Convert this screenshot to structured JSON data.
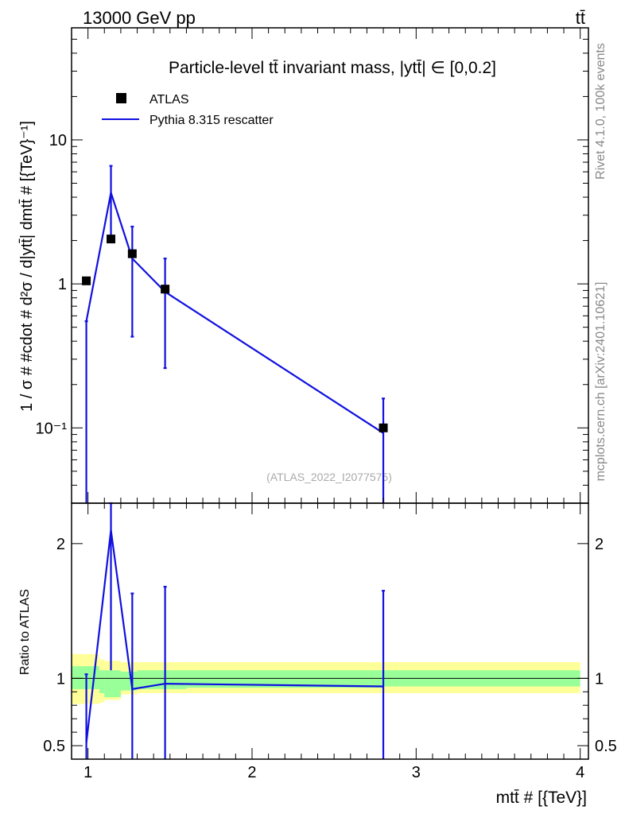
{
  "header": {
    "energy_label": "13000 GeV pp",
    "process_label": "tt̄"
  },
  "side_labels": {
    "rivet": "Rivet 4.1.0,  100k events",
    "source": "mcplots.cern.ch [arXiv:2401.10621]"
  },
  "colors": {
    "mc_line": "#1010e0",
    "band_inner": "#99ff99",
    "band_outer": "#ffff99",
    "data_marker": "#000000"
  },
  "chart_data": [
    {
      "type": "scatter",
      "panel": "main",
      "title": "Particle-level tt̄ invariant mass, |ytt̄| ∈ [0,0.2]",
      "ylabel": "1 / σ # #cdot # d²σ / d|ytt̄| dmtt̄ # [{TeV}⁻¹]",
      "yscale": "log",
      "ylim": [
        0.03,
        60
      ],
      "xlim": [
        0.9,
        4.05
      ],
      "yticks": [
        {
          "value": 10,
          "label": "10"
        },
        {
          "value": 1,
          "label": "1"
        },
        {
          "value": 0.1,
          "label": "10⁻¹"
        }
      ],
      "legend": [
        "ATLAS",
        "Pythia 8.315 rescatter"
      ],
      "watermark": "(ATLAS_2022_I2077575)",
      "data_series": {
        "name": "ATLAS",
        "x": [
          0.99,
          1.14,
          1.27,
          1.47,
          2.8
        ],
        "y": [
          1.05,
          2.05,
          1.62,
          0.92,
          0.1
        ]
      },
      "mc_series": {
        "name": "Pythia 8.315 rescatter",
        "x": [
          0.99,
          1.14,
          1.27,
          1.47,
          2.8
        ],
        "y": [
          0.55,
          4.3,
          1.5,
          0.88,
          0.092
        ],
        "err_low": [
          0.0,
          2.15,
          0.43,
          0.26,
          0.0
        ],
        "err_high": [
          0.55,
          6.6,
          2.5,
          1.5,
          0.16
        ]
      }
    },
    {
      "type": "line",
      "panel": "ratio",
      "ylabel": "Ratio to ATLAS",
      "xlabel": "mtt̄ # [{TeV}]",
      "xlim": [
        0.9,
        4.05
      ],
      "ylim": [
        0.4,
        2.3
      ],
      "xticks": [
        {
          "value": 1,
          "label": "1"
        },
        {
          "value": 2,
          "label": "2"
        },
        {
          "value": 3,
          "label": "3"
        },
        {
          "value": 4,
          "label": "4"
        }
      ],
      "yticks": [
        {
          "value": 2,
          "label": "2"
        },
        {
          "value": 1,
          "label": "1"
        },
        {
          "value": 0.5,
          "label": "0.5"
        }
      ],
      "mc_ratio": {
        "x": [
          0.99,
          1.14,
          1.27,
          1.47,
          2.8
        ],
        "y": [
          0.52,
          2.1,
          0.92,
          0.96,
          0.94
        ],
        "err_low": [
          0.4,
          1.06,
          0.4,
          0.4,
          0.4
        ],
        "err_high": [
          1.03,
          2.3,
          1.63,
          1.68,
          1.65
        ]
      },
      "bands": [
        {
          "x0": 0.9,
          "x1": 1.07,
          "inner": [
            0.92,
            1.09
          ],
          "outer": [
            0.81,
            1.18
          ]
        },
        {
          "x0": 1.07,
          "x1": 1.1,
          "inner": [
            0.89,
            1.06
          ],
          "outer": [
            0.82,
            1.14
          ]
        },
        {
          "x0": 1.1,
          "x1": 1.2,
          "inner": [
            0.86,
            1.06
          ],
          "outer": [
            0.84,
            1.13
          ]
        },
        {
          "x0": 1.2,
          "x1": 1.3,
          "inner": [
            0.91,
            1.05
          ],
          "outer": [
            0.88,
            1.12
          ]
        },
        {
          "x0": 1.3,
          "x1": 1.6,
          "inner": [
            0.92,
            1.06
          ],
          "outer": [
            0.89,
            1.12
          ]
        },
        {
          "x0": 1.6,
          "x1": 2.8,
          "inner": [
            0.93,
            1.06
          ],
          "outer": [
            0.89,
            1.12
          ]
        },
        {
          "x0": 2.8,
          "x1": 4.0,
          "inner": [
            0.94,
            1.06
          ],
          "outer": [
            0.89,
            1.12
          ]
        }
      ]
    }
  ]
}
